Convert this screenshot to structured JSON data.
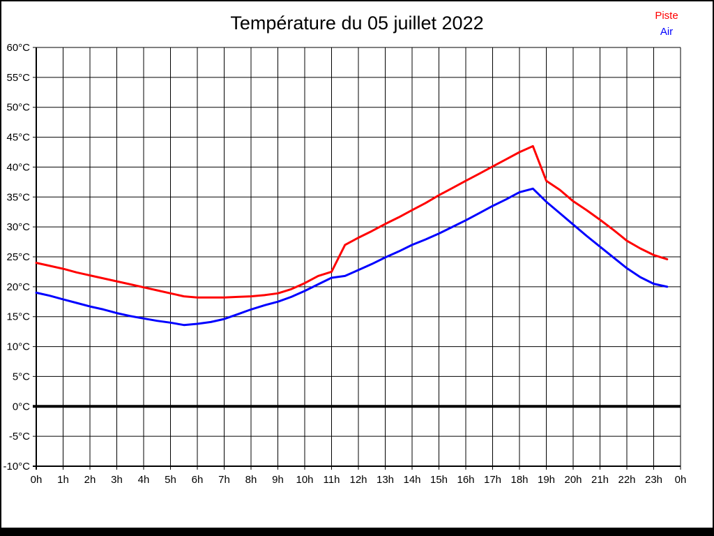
{
  "chart_data": {
    "type": "line",
    "title": "Température du 05 juillet 2022",
    "xlabel": "",
    "ylabel": "",
    "x_unit": "h",
    "y_unit": "°C",
    "xlim": [
      0,
      24
    ],
    "ylim": [
      -10,
      60
    ],
    "grid": true,
    "legend_position": "top-right",
    "zero_line_bold": true,
    "x_tick_values": [
      0,
      1,
      2,
      3,
      4,
      5,
      6,
      7,
      8,
      9,
      10,
      11,
      12,
      13,
      14,
      15,
      16,
      17,
      18,
      19,
      20,
      21,
      22,
      23,
      24
    ],
    "x_tick_labels": [
      "0h",
      "1h",
      "2h",
      "3h",
      "4h",
      "5h",
      "6h",
      "7h",
      "8h",
      "9h",
      "10h",
      "11h",
      "12h",
      "13h",
      "14h",
      "15h",
      "16h",
      "17h",
      "18h",
      "19h",
      "20h",
      "21h",
      "22h",
      "23h",
      "0h"
    ],
    "y_tick_values": [
      60,
      55,
      50,
      45,
      40,
      35,
      30,
      25,
      20,
      15,
      10,
      5,
      0,
      -5,
      -10
    ],
    "y_tick_labels": [
      "60°C",
      "55°C",
      "50°C",
      "45°C",
      "40°C",
      "35°C",
      "30°C",
      "25°C",
      "20°C",
      "15°C",
      "10°C",
      "5°C",
      "0°C",
      "-5°C",
      "-10°C"
    ],
    "x": [
      0,
      0.5,
      1,
      1.5,
      2,
      2.5,
      3,
      3.5,
      4,
      4.5,
      5,
      5.5,
      6,
      6.5,
      7,
      7.5,
      8,
      8.5,
      9,
      9.5,
      10,
      10.5,
      11,
      11.5,
      12,
      12.5,
      13,
      13.5,
      14,
      14.5,
      15,
      15.5,
      16,
      16.5,
      17,
      17.5,
      18,
      18.5,
      19,
      19.5,
      20,
      20.5,
      21,
      21.5,
      22,
      22.5,
      23,
      23.5
    ],
    "series": [
      {
        "name": "Piste",
        "color": "#ff0000",
        "values": [
          24.0,
          23.5,
          23.0,
          22.4,
          21.9,
          21.4,
          20.9,
          20.4,
          19.9,
          19.4,
          18.9,
          18.4,
          18.2,
          18.2,
          18.2,
          18.3,
          18.4,
          18.6,
          18.9,
          19.6,
          20.6,
          21.8,
          22.5,
          27.0,
          28.2,
          29.3,
          30.5,
          31.6,
          32.8,
          34.0,
          35.3,
          36.5,
          37.7,
          38.9,
          40.1,
          41.3,
          42.5,
          43.5,
          37.7,
          36.2,
          34.3,
          32.8,
          31.2,
          29.5,
          27.7,
          26.4,
          25.3,
          24.6
        ]
      },
      {
        "name": "Air",
        "color": "#0000ff",
        "values": [
          19.0,
          18.5,
          17.9,
          17.3,
          16.7,
          16.2,
          15.6,
          15.1,
          14.7,
          14.3,
          14.0,
          13.6,
          13.8,
          14.1,
          14.6,
          15.4,
          16.2,
          16.9,
          17.5,
          18.3,
          19.3,
          20.4,
          21.5,
          21.8,
          22.8,
          23.8,
          24.9,
          25.9,
          27.0,
          27.9,
          28.9,
          30.0,
          31.1,
          32.3,
          33.5,
          34.6,
          35.8,
          36.4,
          34.2,
          32.3,
          30.4,
          28.5,
          26.7,
          24.9,
          23.1,
          21.6,
          20.5,
          20.0
        ]
      }
    ]
  }
}
